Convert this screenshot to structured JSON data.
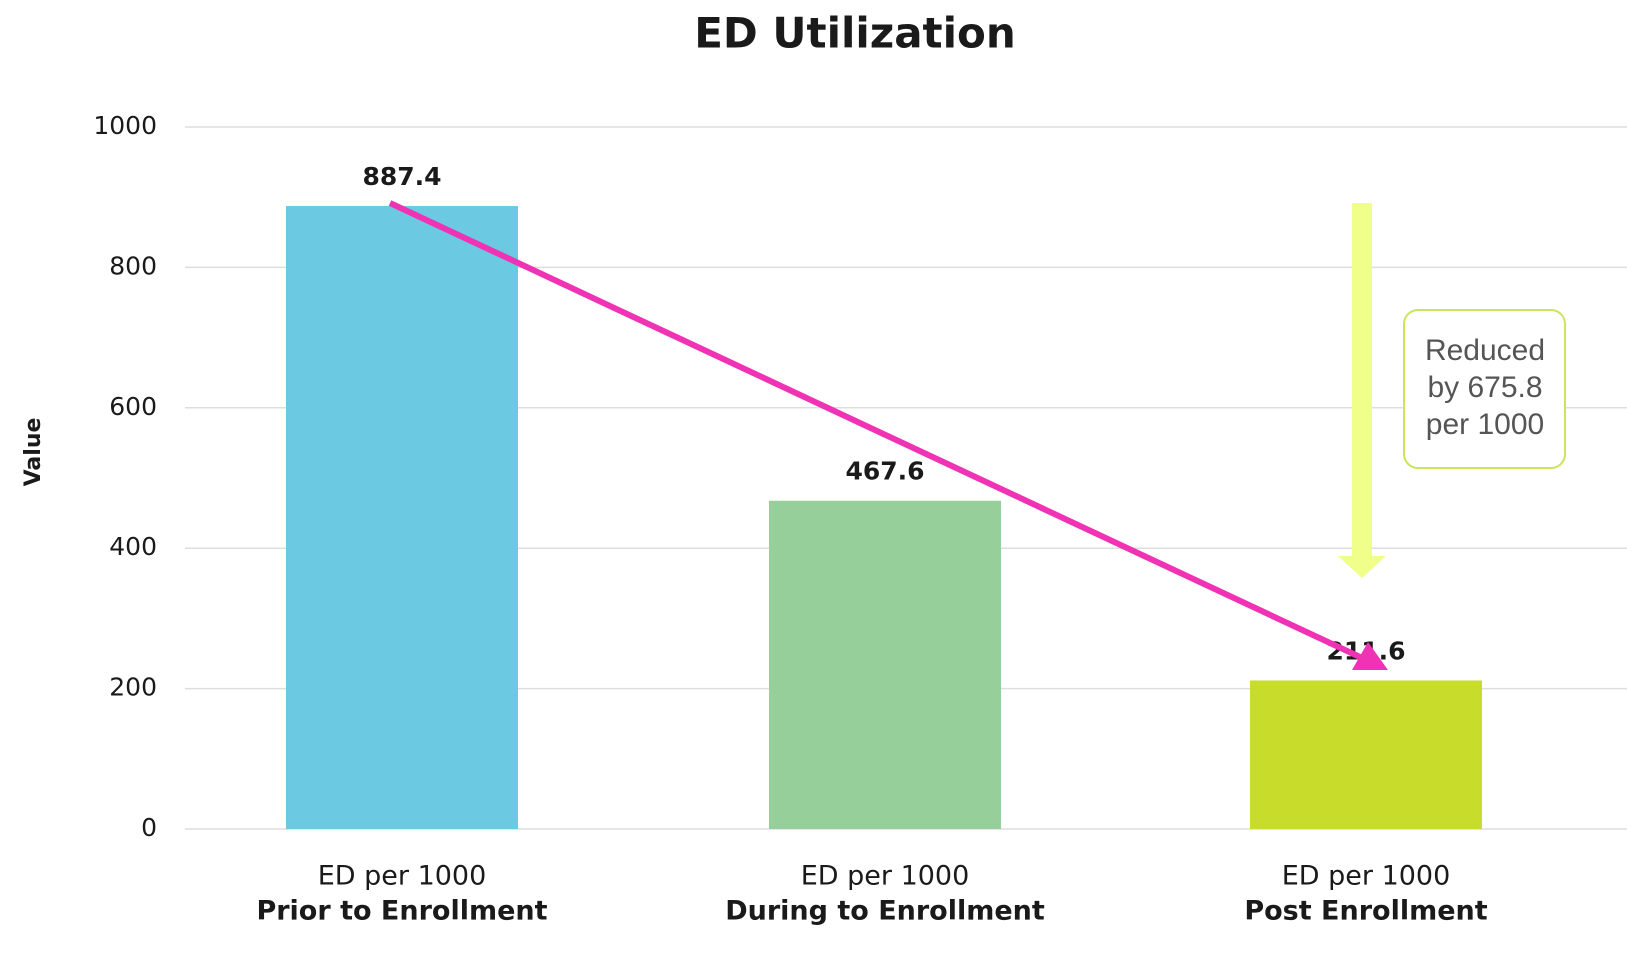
{
  "chart_data": {
    "type": "bar",
    "title": "ED Utilization",
    "y_label": "Value",
    "categories": [
      [
        "ED per 1000",
        "Prior to Enrollment"
      ],
      [
        "ED per 1000",
        "During to Enrollment"
      ],
      [
        "ED per 1000",
        "Post Enrollment"
      ]
    ],
    "values": [
      887.4,
      467.6,
      211.6
    ],
    "colors": [
      "#6bc9e2",
      "#96cf9a",
      "#c8dc2b"
    ],
    "ylim": [
      0,
      1000
    ],
    "yticks": [
      0,
      200,
      400,
      600,
      800,
      1000
    ],
    "grid": true,
    "annotation": [
      "Reduced",
      "by 675.8",
      "per 1000"
    ]
  }
}
